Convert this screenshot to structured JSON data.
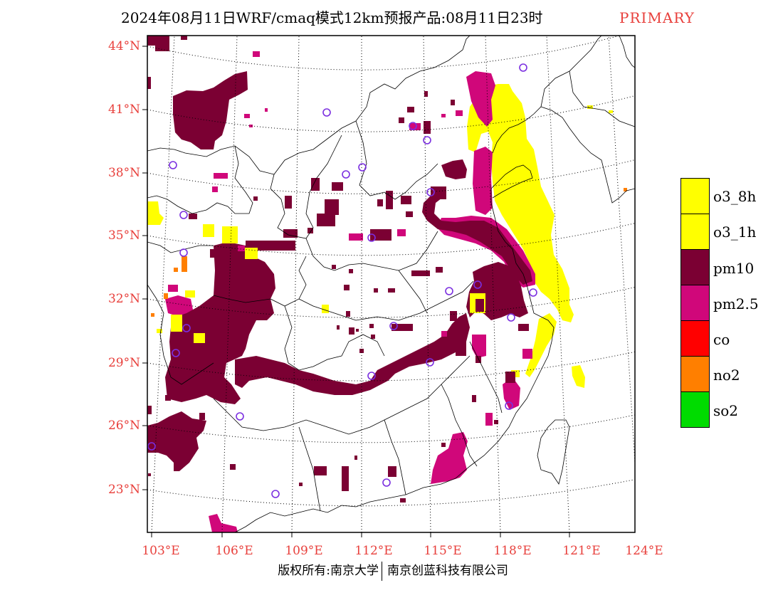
{
  "title": {
    "main": "2024年08月11日WRF/cmaq模式12km预报产品:08月11日23时",
    "species": "PRIMARY"
  },
  "map": {
    "lat_labels": [
      "44°N",
      "41°N",
      "38°N",
      "35°N",
      "32°N",
      "29°N",
      "26°N",
      "23°N"
    ],
    "lon_labels": [
      "103°E",
      "106°E",
      "109°E",
      "112°E",
      "115°E",
      "118°E",
      "121°E",
      "124°E"
    ]
  },
  "legend": {
    "items": [
      {
        "label": "o3_8h",
        "color": "#ffff00"
      },
      {
        "label": "o3_1h",
        "color": "#ffff00"
      },
      {
        "label": "pm10",
        "color": "#7b0033"
      },
      {
        "label": "pm2.5",
        "color": "#d0077a"
      },
      {
        "label": "co",
        "color": "#ff0000"
      },
      {
        "label": "no2",
        "color": "#ff7f00"
      },
      {
        "label": "so2",
        "color": "#00dc00"
      }
    ]
  },
  "colors": {
    "label_text": "#e8403c",
    "city_marker": "#7b2fe0"
  },
  "copyright": {
    "left": "版权所有:南京大学",
    "right": "南京创蓝科技有限公司"
  }
}
